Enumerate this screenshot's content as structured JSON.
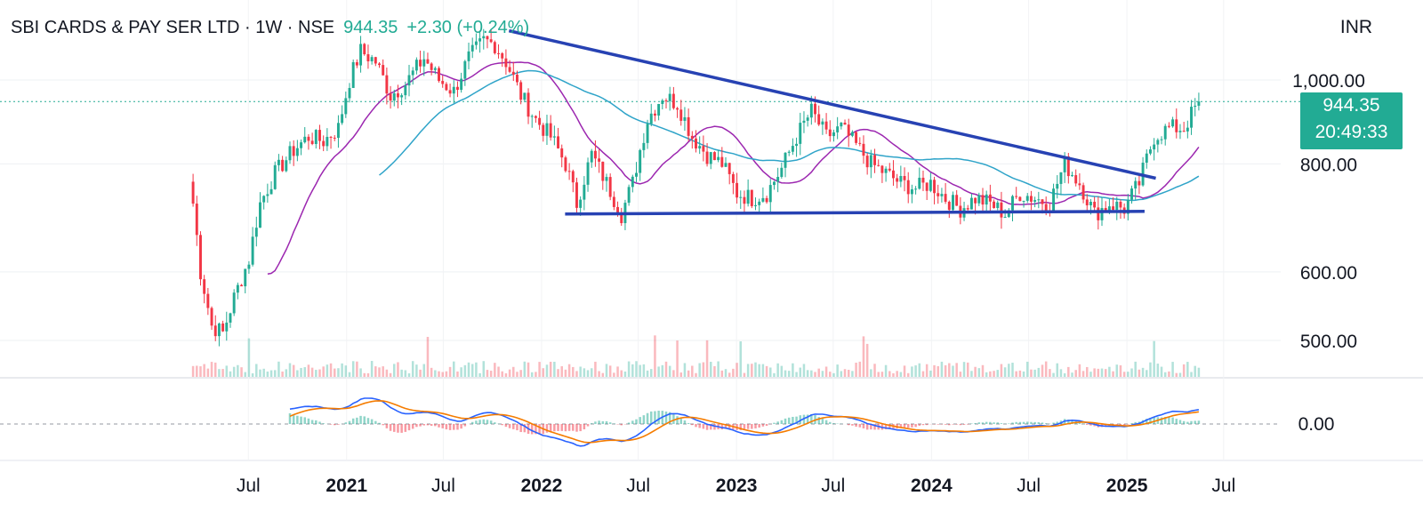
{
  "header": {
    "symbol": "SBI CARDS & PAY SER LTD · 1W · NSE",
    "price": "944.35",
    "change": "+2.30 (+0.24%)"
  },
  "currency": "INR",
  "price_label": {
    "price": "944.35",
    "countdown": "20:49:33"
  },
  "colors": {
    "up": "#22ab94",
    "down": "#f23645",
    "trendline": "#2742b3",
    "ma_fast": "#9c27b0",
    "ma_slow": "#2fa4c9",
    "macd": "#2962ff",
    "signal": "#f57c00"
  },
  "chart_data": {
    "type": "candlestick",
    "title": "SBI CARDS & PAY SER LTD · 1W · NSE",
    "y_ticks": [
      "1,000.00",
      "800.00",
      "600.00",
      "500.00"
    ],
    "x_ticks": [
      "Jul",
      "2021",
      "Jul",
      "2022",
      "Jul",
      "2023",
      "Jul",
      "2024",
      "Jul",
      "2025",
      "Jul"
    ],
    "indicator_tick": "0.00",
    "last_price": 944.35,
    "y_range": [
      460,
      1180
    ],
    "close_path": [
      {
        "x": "2020-03-16",
        "y": 720
      },
      {
        "x": "2020-03-30",
        "y": 600
      },
      {
        "x": "2020-04-20",
        "y": 520
      },
      {
        "x": "2020-05-11",
        "y": 510
      },
      {
        "x": "2020-06-01",
        "y": 560
      },
      {
        "x": "2020-06-29",
        "y": 620
      },
      {
        "x": "2020-07-20",
        "y": 720
      },
      {
        "x": "2020-08-17",
        "y": 780
      },
      {
        "x": "2020-09-21",
        "y": 830
      },
      {
        "x": "2020-10-19",
        "y": 860
      },
      {
        "x": "2020-11-16",
        "y": 850
      },
      {
        "x": "2020-12-14",
        "y": 880
      },
      {
        "x": "2021-01-04",
        "y": 1000
      },
      {
        "x": "2021-01-25",
        "y": 1080
      },
      {
        "x": "2021-02-22",
        "y": 1050
      },
      {
        "x": "2021-03-22",
        "y": 960
      },
      {
        "x": "2021-04-19",
        "y": 990
      },
      {
        "x": "2021-05-24",
        "y": 1060
      },
      {
        "x": "2021-06-21",
        "y": 1000
      },
      {
        "x": "2021-07-19",
        "y": 970
      },
      {
        "x": "2021-08-16",
        "y": 1060
      },
      {
        "x": "2021-09-13",
        "y": 1110
      },
      {
        "x": "2021-10-04",
        "y": 1100
      },
      {
        "x": "2021-10-25",
        "y": 1050
      },
      {
        "x": "2021-11-22",
        "y": 960
      },
      {
        "x": "2021-12-20",
        "y": 900
      },
      {
        "x": "2022-01-17",
        "y": 860
      },
      {
        "x": "2022-02-14",
        "y": 800
      },
      {
        "x": "2022-03-07",
        "y": 720
      },
      {
        "x": "2022-04-04",
        "y": 820
      },
      {
        "x": "2022-05-02",
        "y": 760
      },
      {
        "x": "2022-05-30",
        "y": 700
      },
      {
        "x": "2022-06-20",
        "y": 760
      },
      {
        "x": "2022-07-18",
        "y": 900
      },
      {
        "x": "2022-08-15",
        "y": 960
      },
      {
        "x": "2022-09-12",
        "y": 940
      },
      {
        "x": "2022-10-10",
        "y": 860
      },
      {
        "x": "2022-11-07",
        "y": 820
      },
      {
        "x": "2022-12-05",
        "y": 800
      },
      {
        "x": "2023-01-02",
        "y": 740
      },
      {
        "x": "2023-01-30",
        "y": 730
      },
      {
        "x": "2023-02-27",
        "y": 740
      },
      {
        "x": "2023-03-27",
        "y": 790
      },
      {
        "x": "2023-04-24",
        "y": 860
      },
      {
        "x": "2023-05-22",
        "y": 920
      },
      {
        "x": "2023-06-19",
        "y": 860
      },
      {
        "x": "2023-07-17",
        "y": 880
      },
      {
        "x": "2023-08-14",
        "y": 840
      },
      {
        "x": "2023-09-11",
        "y": 800
      },
      {
        "x": "2023-10-09",
        "y": 780
      },
      {
        "x": "2023-11-06",
        "y": 760
      },
      {
        "x": "2023-12-04",
        "y": 750
      },
      {
        "x": "2024-01-01",
        "y": 760
      },
      {
        "x": "2024-01-29",
        "y": 730
      },
      {
        "x": "2024-02-26",
        "y": 710
      },
      {
        "x": "2024-03-25",
        "y": 730
      },
      {
        "x": "2024-04-22",
        "y": 720
      },
      {
        "x": "2024-05-20",
        "y": 700
      },
      {
        "x": "2024-06-17",
        "y": 740
      },
      {
        "x": "2024-07-15",
        "y": 730
      },
      {
        "x": "2024-08-12",
        "y": 720
      },
      {
        "x": "2024-09-09",
        "y": 800
      },
      {
        "x": "2024-10-07",
        "y": 760
      },
      {
        "x": "2024-11-04",
        "y": 700
      },
      {
        "x": "2024-12-02",
        "y": 720
      },
      {
        "x": "2024-12-30",
        "y": 710
      },
      {
        "x": "2025-01-27",
        "y": 760
      },
      {
        "x": "2025-02-24",
        "y": 860
      },
      {
        "x": "2025-03-24",
        "y": 880
      },
      {
        "x": "2025-04-21",
        "y": 880
      },
      {
        "x": "2025-05-19",
        "y": 944.35
      }
    ],
    "trendlines": [
      {
        "name": "descending resistance",
        "from": {
          "x": "2021-11-01",
          "y": 1140
        },
        "to": {
          "x": "2025-02-24",
          "y": 770
        }
      },
      {
        "name": "support",
        "from": {
          "x": "2022-02-14",
          "y": 700
        },
        "to": {
          "x": "2025-02-03",
          "y": 705
        }
      }
    ]
  }
}
